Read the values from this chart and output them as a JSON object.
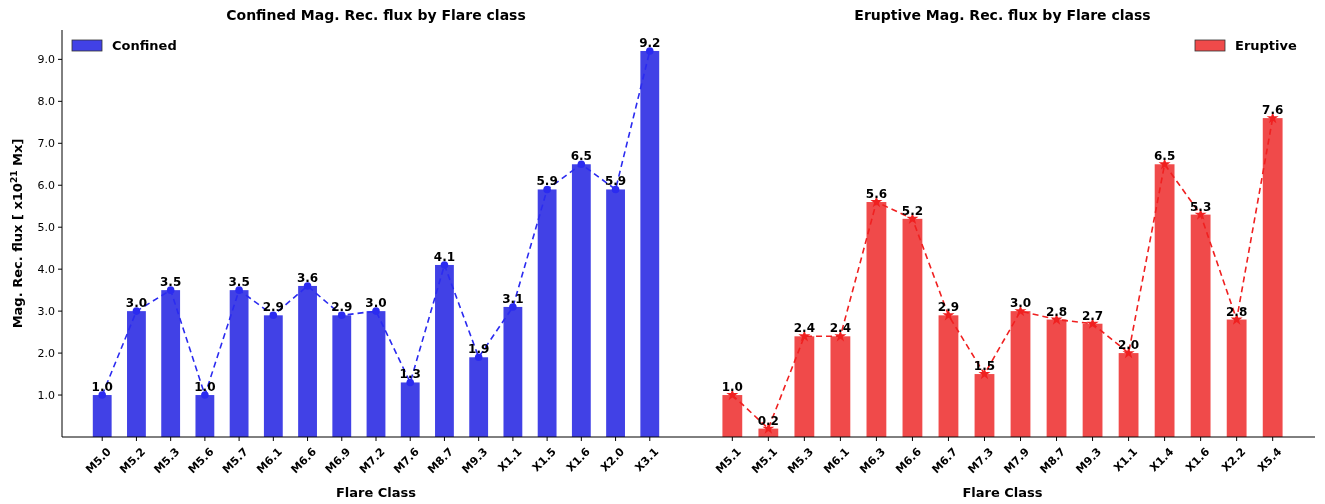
{
  "chart_data": [
    {
      "type": "bar",
      "title": "Confined Mag. Rec. flux by Flare class",
      "xlabel": "Flare Class",
      "ylabel": "Mag. Rec. flux [ x10$^{21}$ Mx]",
      "categories": [
        "M5.0",
        "M5.2",
        "M5.3",
        "M5.6",
        "M5.7",
        "M6.1",
        "M6.6",
        "M6.9",
        "M7.2",
        "M7.6",
        "M8.7",
        "M9.3",
        "X1.1",
        "X1.5",
        "X1.6",
        "X2.0",
        "X3.1"
      ],
      "series": [
        {
          "name": "Confined",
          "color": "#4141e6",
          "values": [
            1.0,
            3.0,
            3.5,
            1.0,
            3.5,
            2.9,
            3.6,
            2.9,
            3.0,
            1.3,
            4.1,
            1.9,
            3.1,
            5.9,
            6.5,
            5.9,
            9.2
          ],
          "value_labels": [
            "1.0",
            "3.0",
            "3.5",
            "1.0",
            "3.5",
            "2.9",
            "3.6",
            "2.9",
            "3.0",
            "1.3",
            "4.1",
            "1.9",
            "3.1",
            "5.9",
            "6.5",
            "5.9",
            "9.2"
          ]
        },
        {
          "type": "line",
          "color": "#2b2bf0",
          "line_style": "dashed",
          "marker": "circle",
          "values": [
            1.0,
            3.0,
            3.5,
            1.0,
            3.5,
            2.9,
            3.6,
            2.9,
            3.0,
            1.3,
            4.1,
            1.9,
            3.1,
            5.9,
            6.5,
            5.9,
            9.2
          ]
        }
      ],
      "ylim": [
        0,
        9.7
      ],
      "yticks": [
        {
          "value": 1,
          "label": "1.0"
        },
        {
          "value": 2,
          "label": "2.0"
        },
        {
          "value": 3,
          "label": "3.0"
        },
        {
          "value": 4,
          "label": "4.0"
        },
        {
          "value": 5,
          "label": "5.0"
        },
        {
          "value": 6,
          "label": "6.0"
        },
        {
          "value": 7,
          "label": "7.0"
        },
        {
          "value": 8,
          "label": "8.0"
        },
        {
          "value": 9,
          "label": "9.0"
        }
      ],
      "legend": "top left"
    },
    {
      "type": "bar",
      "title": "Eruptive Mag. Rec. flux by Flare class",
      "xlabel": "Flare Class",
      "categories": [
        "M5.1",
        "M5.1",
        "M5.3",
        "M6.1",
        "M6.3",
        "M6.6",
        "M6.7",
        "M7.3",
        "M7.9",
        "M8.7",
        "M9.3",
        "X1.1",
        "X1.4",
        "X1.6",
        "X2.2",
        "X5.4"
      ],
      "series": [
        {
          "name": "Eruptive",
          "color": "#f04a4a",
          "values": [
            1.0,
            0.2,
            2.4,
            2.4,
            5.6,
            5.2,
            2.9,
            1.5,
            3.0,
            2.8,
            2.7,
            2.0,
            6.5,
            5.3,
            2.8,
            7.6
          ],
          "value_labels": [
            "1.0",
            "0.2",
            "2.4",
            "2.4",
            "5.6",
            "5.2",
            "2.9",
            "1.5",
            "3.0",
            "2.8",
            "2.7",
            "2.0",
            "6.5",
            "5.3",
            "2.8",
            "7.6"
          ]
        },
        {
          "type": "line",
          "color": "#f02020",
          "line_style": "dashed",
          "marker": "star",
          "values": [
            1.0,
            0.2,
            2.4,
            2.4,
            5.6,
            5.2,
            2.9,
            1.5,
            3.0,
            2.8,
            2.7,
            2.0,
            6.5,
            5.3,
            2.8,
            7.6
          ]
        }
      ],
      "tick_labels": "x",
      "legend": "top right"
    }
  ]
}
